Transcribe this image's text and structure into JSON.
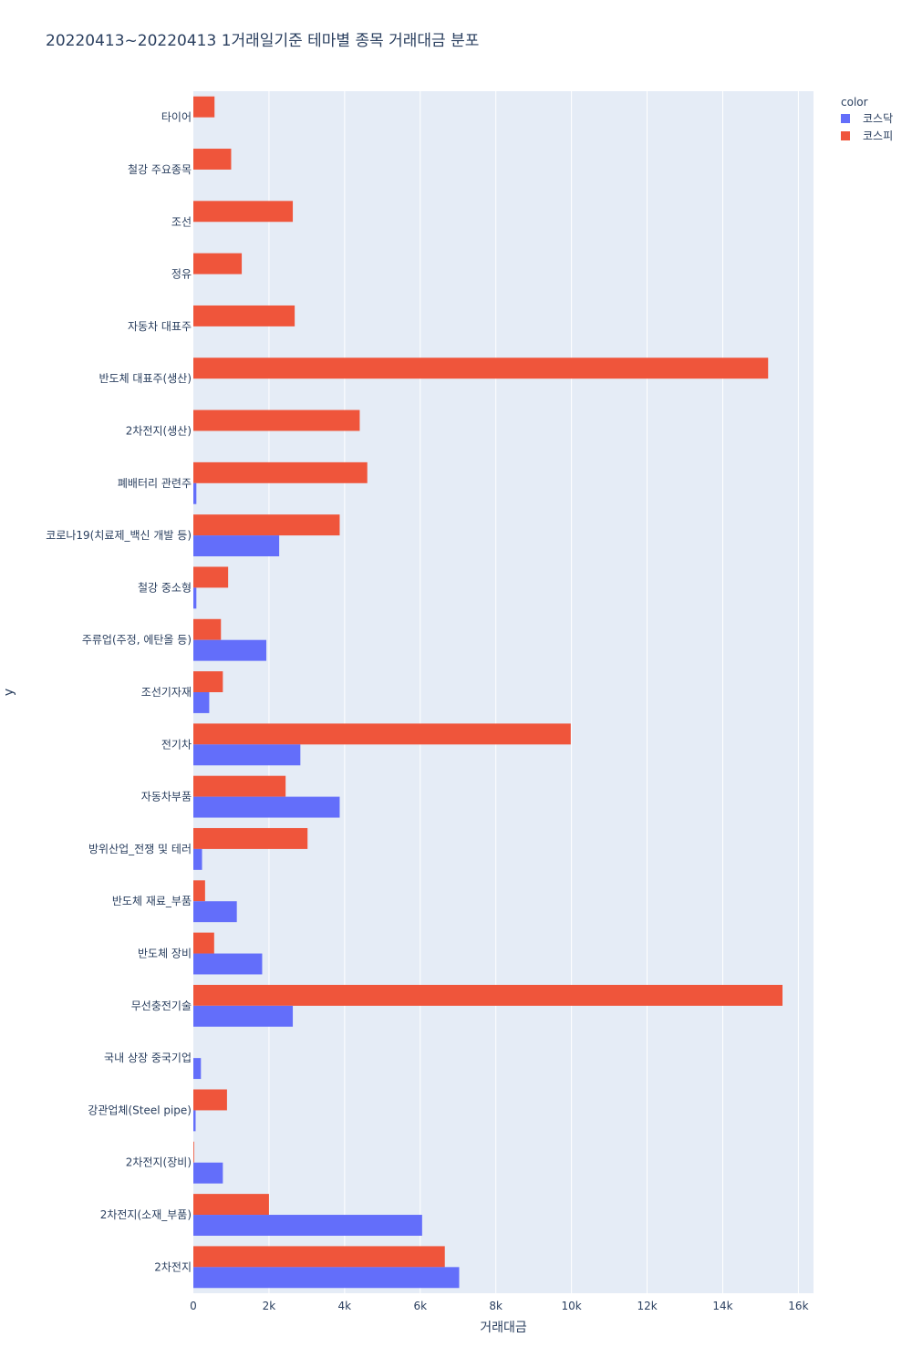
{
  "chart_data": {
    "type": "bar",
    "orientation": "horizontal",
    "barmode": "group",
    "title": "20220413~20220413 1거래일기준 테마별 종목 거래대금 분포",
    "xlabel": "거래대금",
    "ylabel": "y",
    "xlim": [
      0,
      16400
    ],
    "x_ticks": [
      0,
      2000,
      4000,
      6000,
      8000,
      10000,
      12000,
      14000,
      16000
    ],
    "x_tick_labels": [
      "0",
      "2k",
      "4k",
      "6k",
      "8k",
      "10k",
      "12k",
      "14k",
      "16k"
    ],
    "grid": true,
    "legend_title": "color",
    "legend_position": "top-right",
    "categories": [
      "타이어",
      "철강 주요종목",
      "조선",
      "정유",
      "자동차 대표주",
      "반도체 대표주(생산)",
      "2차전지(생산)",
      "폐배터리 관련주",
      "코로나19(치료제_백신 개발 등)",
      "철강 중소형",
      "주류업(주정, 에탄올 등)",
      "조선기자재",
      "전기차",
      "자동차부품",
      "방위산업_전쟁 및 테러",
      "반도체 재료_부품",
      "반도체 장비",
      "무선충전기술",
      "국내 상장 중국기업",
      "강관업체(Steel pipe)",
      "2차전지(장비)",
      "2차전지(소재_부품)",
      "2차전지"
    ],
    "series": [
      {
        "name": "코스닥",
        "color": "#636efa",
        "values": [
          0,
          0,
          0,
          0,
          0,
          0,
          0,
          80,
          2270,
          80,
          1930,
          420,
          2830,
          3870,
          230,
          1150,
          1820,
          2630,
          200,
          60,
          780,
          6050,
          7030
        ]
      },
      {
        "name": "코스피",
        "color": "#ef553b",
        "values": [
          560,
          1000,
          2630,
          1280,
          2680,
          15200,
          4400,
          4600,
          3870,
          920,
          730,
          780,
          9980,
          2440,
          3020,
          310,
          550,
          15580,
          0,
          890,
          20,
          2000,
          6650
        ]
      }
    ]
  }
}
